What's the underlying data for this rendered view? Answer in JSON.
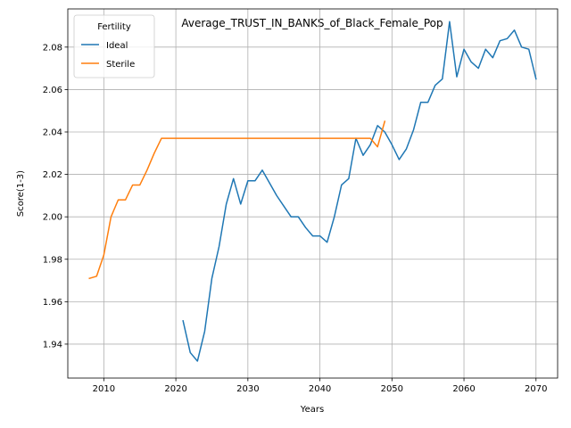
{
  "chart_data": {
    "type": "line",
    "title": "Average_TRUST_IN_BANKS_of_Black_Female_Pop",
    "xlabel": "Years",
    "ylabel": "Score(1-3)",
    "xlim": [
      2005,
      2073
    ],
    "ylim": [
      1.924,
      2.098
    ],
    "x_ticks": [
      2010,
      2020,
      2030,
      2040,
      2050,
      2060,
      2070
    ],
    "y_ticks": [
      1.94,
      1.96,
      1.98,
      2.0,
      2.02,
      2.04,
      2.06,
      2.08
    ],
    "y_tick_labels": [
      "1.94",
      "1.96",
      "1.98",
      "2.00",
      "2.02",
      "2.04",
      "2.06",
      "2.08"
    ],
    "grid": true,
    "legend": {
      "title": "Fertility",
      "position": "top-left"
    },
    "series": [
      {
        "name": "Ideal",
        "color": "#1f77b4",
        "x": [
          2021,
          2022,
          2023,
          2024,
          2025,
          2026,
          2027,
          2028,
          2029,
          2030,
          2031,
          2032,
          2033,
          2034,
          2035,
          2036,
          2037,
          2038,
          2039,
          2040,
          2041,
          2042,
          2043,
          2044,
          2045,
          2046,
          2047,
          2048,
          2049,
          2050,
          2051,
          2052,
          2053,
          2054,
          2055,
          2056,
          2057,
          2058,
          2059,
          2060,
          2061,
          2062,
          2063,
          2064,
          2065,
          2066,
          2067,
          2068,
          2069,
          2070
        ],
        "y": [
          1.951,
          1.936,
          1.932,
          1.946,
          1.971,
          1.986,
          2.006,
          2.018,
          2.006,
          2.017,
          2.017,
          2.022,
          2.016,
          2.01,
          2.005,
          2.0,
          2.0,
          1.995,
          1.991,
          1.991,
          1.988,
          2.0,
          2.015,
          2.018,
          2.037,
          2.029,
          2.034,
          2.043,
          2.04,
          2.034,
          2.027,
          2.032,
          2.041,
          2.054,
          2.054,
          2.062,
          2.065,
          2.092,
          2.066,
          2.079,
          2.073,
          2.07,
          2.079,
          2.075,
          2.083,
          2.084,
          2.088,
          2.08,
          2.079,
          2.065
        ]
      },
      {
        "name": "Sterile",
        "color": "#ff7f0e",
        "x": [
          2008,
          2009,
          2010,
          2011,
          2012,
          2013,
          2014,
          2015,
          2016,
          2017,
          2018,
          2019,
          2020,
          2021,
          2022,
          2023,
          2024,
          2025,
          2026,
          2027,
          2028,
          2029,
          2030,
          2031,
          2032,
          2033,
          2034,
          2035,
          2036,
          2037,
          2038,
          2039,
          2040,
          2041,
          2042,
          2043,
          2044,
          2045,
          2046,
          2047,
          2048,
          2049
        ],
        "y": [
          1.971,
          1.972,
          1.982,
          2.0,
          2.008,
          2.008,
          2.015,
          2.015,
          2.022,
          2.03,
          2.037,
          2.037,
          2.037,
          2.037,
          2.037,
          2.037,
          2.037,
          2.037,
          2.037,
          2.037,
          2.037,
          2.037,
          2.037,
          2.037,
          2.037,
          2.037,
          2.037,
          2.037,
          2.037,
          2.037,
          2.037,
          2.037,
          2.037,
          2.037,
          2.037,
          2.037,
          2.037,
          2.037,
          2.037,
          2.037,
          2.033,
          2.045
        ]
      }
    ]
  }
}
